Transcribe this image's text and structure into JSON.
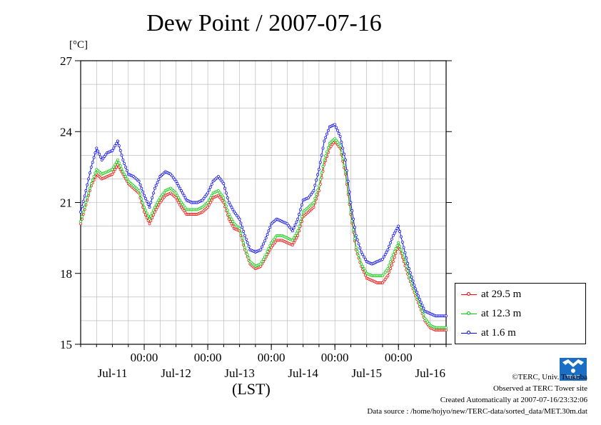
{
  "title": "Dew Point / 2007-07-16",
  "y_unit": "[°C]",
  "x_unit": "(LST)",
  "credits": {
    "line1": "©TERC, Univ. Tsukuba",
    "line2": "Observed at TERC Tower site",
    "line3": "Created Automatically at 2007-07-16/23:32:06",
    "line4": "Data source : /home/hojyo/new/TERC-data/sorted_data/MET.30m.dat"
  },
  "logo_text": "TERC",
  "chart_data": {
    "type": "line",
    "title": "Dew Point / 2007-07-16",
    "xlabel": "(LST)",
    "ylabel": "[°C]",
    "x_unit": "hours from 2007-07-10 12:00 LST",
    "xlim": [
      0,
      138
    ],
    "ylim": [
      15,
      27
    ],
    "yticks": [
      15,
      18,
      21,
      24,
      27
    ],
    "grid": true,
    "legend_position": "bottom-right outside",
    "time_tick_labels": [
      {
        "x": 24,
        "label": "00:00"
      },
      {
        "x": 48,
        "label": "00:00"
      },
      {
        "x": 72,
        "label": "00:00"
      },
      {
        "x": 96,
        "label": "00:00"
      },
      {
        "x": 120,
        "label": "00:00"
      }
    ],
    "date_labels": [
      {
        "x": 12,
        "label": "Jul-11"
      },
      {
        "x": 36,
        "label": "Jul-12"
      },
      {
        "x": 60,
        "label": "Jul-13"
      },
      {
        "x": 84,
        "label": "Jul-14"
      },
      {
        "x": 108,
        "label": "Jul-15"
      },
      {
        "x": 132,
        "label": "Jul-16"
      }
    ],
    "series": [
      {
        "name": "at 29.5 m",
        "color": "#ff0000",
        "points": [
          [
            0,
            20.1
          ],
          [
            2,
            20.9
          ],
          [
            4,
            21.7
          ],
          [
            6,
            22.2
          ],
          [
            8,
            22.0
          ],
          [
            10,
            22.1
          ],
          [
            12,
            22.2
          ],
          [
            14,
            22.6
          ],
          [
            16,
            22.2
          ],
          [
            18,
            21.8
          ],
          [
            20,
            21.6
          ],
          [
            22,
            21.4
          ],
          [
            24,
            20.6
          ],
          [
            26,
            20.1
          ],
          [
            28,
            20.6
          ],
          [
            30,
            21.0
          ],
          [
            32,
            21.3
          ],
          [
            34,
            21.4
          ],
          [
            36,
            21.2
          ],
          [
            38,
            20.8
          ],
          [
            40,
            20.5
          ],
          [
            42,
            20.5
          ],
          [
            44,
            20.5
          ],
          [
            46,
            20.6
          ],
          [
            48,
            20.8
          ],
          [
            50,
            21.2
          ],
          [
            52,
            21.3
          ],
          [
            54,
            21.0
          ],
          [
            56,
            20.3
          ],
          [
            58,
            19.9
          ],
          [
            60,
            19.8
          ],
          [
            62,
            19.0
          ],
          [
            64,
            18.4
          ],
          [
            66,
            18.2
          ],
          [
            68,
            18.3
          ],
          [
            70,
            18.7
          ],
          [
            72,
            19.1
          ],
          [
            74,
            19.4
          ],
          [
            76,
            19.4
          ],
          [
            78,
            19.3
          ],
          [
            80,
            19.2
          ],
          [
            82,
            19.6
          ],
          [
            84,
            20.4
          ],
          [
            86,
            20.6
          ],
          [
            88,
            20.8
          ],
          [
            90,
            21.5
          ],
          [
            92,
            22.6
          ],
          [
            94,
            23.3
          ],
          [
            96,
            23.6
          ],
          [
            98,
            23.3
          ],
          [
            100,
            22.2
          ],
          [
            102,
            20.5
          ],
          [
            104,
            19.0
          ],
          [
            106,
            18.3
          ],
          [
            108,
            17.8
          ],
          [
            110,
            17.7
          ],
          [
            112,
            17.6
          ],
          [
            114,
            17.6
          ],
          [
            116,
            17.9
          ],
          [
            118,
            18.5
          ],
          [
            120,
            19.2
          ],
          [
            122,
            18.5
          ],
          [
            124,
            17.8
          ],
          [
            126,
            17.2
          ],
          [
            128,
            16.6
          ],
          [
            130,
            16.0
          ],
          [
            132,
            15.7
          ],
          [
            134,
            15.6
          ],
          [
            136,
            15.6
          ],
          [
            138,
            15.6
          ]
        ]
      },
      {
        "name": "at 12.3 m",
        "color": "#00cc00",
        "points": [
          [
            0,
            20.2
          ],
          [
            2,
            21.0
          ],
          [
            4,
            21.8
          ],
          [
            6,
            22.4
          ],
          [
            8,
            22.2
          ],
          [
            10,
            22.3
          ],
          [
            12,
            22.4
          ],
          [
            14,
            22.8
          ],
          [
            16,
            22.3
          ],
          [
            18,
            21.9
          ],
          [
            20,
            21.7
          ],
          [
            22,
            21.5
          ],
          [
            24,
            20.8
          ],
          [
            26,
            20.3
          ],
          [
            28,
            20.8
          ],
          [
            30,
            21.2
          ],
          [
            32,
            21.5
          ],
          [
            34,
            21.6
          ],
          [
            36,
            21.4
          ],
          [
            38,
            21.0
          ],
          [
            40,
            20.7
          ],
          [
            42,
            20.7
          ],
          [
            44,
            20.7
          ],
          [
            46,
            20.8
          ],
          [
            48,
            21.0
          ],
          [
            50,
            21.4
          ],
          [
            52,
            21.5
          ],
          [
            54,
            21.2
          ],
          [
            56,
            20.5
          ],
          [
            58,
            20.1
          ],
          [
            60,
            19.9
          ],
          [
            62,
            19.1
          ],
          [
            64,
            18.5
          ],
          [
            66,
            18.3
          ],
          [
            68,
            18.4
          ],
          [
            70,
            18.8
          ],
          [
            72,
            19.3
          ],
          [
            74,
            19.6
          ],
          [
            76,
            19.6
          ],
          [
            78,
            19.5
          ],
          [
            80,
            19.4
          ],
          [
            82,
            19.8
          ],
          [
            84,
            20.6
          ],
          [
            86,
            20.8
          ],
          [
            88,
            21.0
          ],
          [
            90,
            21.7
          ],
          [
            92,
            22.8
          ],
          [
            94,
            23.5
          ],
          [
            96,
            23.7
          ],
          [
            98,
            23.4
          ],
          [
            100,
            22.3
          ],
          [
            102,
            20.6
          ],
          [
            104,
            19.1
          ],
          [
            106,
            18.4
          ],
          [
            108,
            18.0
          ],
          [
            110,
            17.9
          ],
          [
            112,
            17.9
          ],
          [
            114,
            17.9
          ],
          [
            116,
            18.2
          ],
          [
            118,
            18.8
          ],
          [
            120,
            19.3
          ],
          [
            122,
            18.7
          ],
          [
            124,
            17.9
          ],
          [
            126,
            17.3
          ],
          [
            128,
            16.7
          ],
          [
            130,
            16.1
          ],
          [
            132,
            15.8
          ],
          [
            134,
            15.7
          ],
          [
            136,
            15.7
          ],
          [
            138,
            15.7
          ]
        ]
      },
      {
        "name": "at 1.6 m",
        "color": "#0000ff",
        "points": [
          [
            0,
            20.6
          ],
          [
            2,
            21.5
          ],
          [
            4,
            22.5
          ],
          [
            6,
            23.3
          ],
          [
            8,
            22.8
          ],
          [
            10,
            23.1
          ],
          [
            12,
            23.2
          ],
          [
            14,
            23.6
          ],
          [
            16,
            22.8
          ],
          [
            18,
            22.2
          ],
          [
            20,
            22.1
          ],
          [
            22,
            21.9
          ],
          [
            24,
            21.3
          ],
          [
            26,
            20.8
          ],
          [
            28,
            21.6
          ],
          [
            30,
            22.1
          ],
          [
            32,
            22.3
          ],
          [
            34,
            22.2
          ],
          [
            36,
            21.9
          ],
          [
            38,
            21.5
          ],
          [
            40,
            21.1
          ],
          [
            42,
            21.0
          ],
          [
            44,
            21.0
          ],
          [
            46,
            21.1
          ],
          [
            48,
            21.4
          ],
          [
            50,
            21.9
          ],
          [
            52,
            22.1
          ],
          [
            54,
            21.8
          ],
          [
            56,
            21.0
          ],
          [
            58,
            20.6
          ],
          [
            60,
            20.3
          ],
          [
            62,
            19.6
          ],
          [
            64,
            19.0
          ],
          [
            66,
            18.9
          ],
          [
            68,
            19.0
          ],
          [
            70,
            19.5
          ],
          [
            72,
            20.1
          ],
          [
            74,
            20.3
          ],
          [
            76,
            20.2
          ],
          [
            78,
            20.1
          ],
          [
            80,
            19.8
          ],
          [
            82,
            20.3
          ],
          [
            84,
            21.1
          ],
          [
            86,
            21.2
          ],
          [
            88,
            21.5
          ],
          [
            90,
            22.4
          ],
          [
            92,
            23.6
          ],
          [
            94,
            24.2
          ],
          [
            96,
            24.3
          ],
          [
            98,
            23.8
          ],
          [
            100,
            22.8
          ],
          [
            102,
            21.0
          ],
          [
            104,
            19.6
          ],
          [
            106,
            18.9
          ],
          [
            108,
            18.5
          ],
          [
            110,
            18.4
          ],
          [
            112,
            18.5
          ],
          [
            114,
            18.6
          ],
          [
            116,
            19.0
          ],
          [
            118,
            19.6
          ],
          [
            120,
            20.0
          ],
          [
            122,
            19.1
          ],
          [
            124,
            18.2
          ],
          [
            126,
            17.5
          ],
          [
            128,
            16.9
          ],
          [
            130,
            16.4
          ],
          [
            132,
            16.3
          ],
          [
            134,
            16.2
          ],
          [
            136,
            16.2
          ],
          [
            138,
            16.2
          ]
        ]
      }
    ]
  }
}
